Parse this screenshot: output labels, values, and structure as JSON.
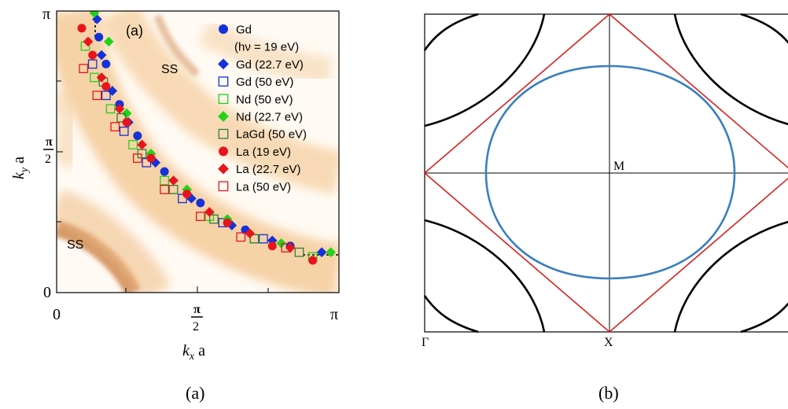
{
  "captions": {
    "left": "(a)",
    "right": "(b)"
  },
  "colors": {
    "gd": "#1531d8",
    "nd": "#22d21b",
    "la": "#e8141c",
    "lagd": "#2e7d3e",
    "fermi_blue": "#3a7fbe",
    "zone_red": "#d92020",
    "heat": "#f3c58e",
    "heat_dark": "#c96a2a"
  },
  "chart_data": [
    {
      "type": "scatter",
      "title": "",
      "panel_label": "(a)",
      "xlabel": "k_x a",
      "ylabel": "k_y a",
      "xlim": [
        0,
        3.1416
      ],
      "ylim": [
        0,
        3.1416
      ],
      "x_ticks": [
        {
          "v": 0,
          "label": "0"
        },
        {
          "v": 1.5708,
          "label": "π/2"
        },
        {
          "v": 3.1416,
          "label": "π"
        }
      ],
      "y_ticks": [
        {
          "v": 0,
          "label": "0"
        },
        {
          "v": 1.5708,
          "label": "π/2"
        },
        {
          "v": 3.1416,
          "label": "π"
        }
      ],
      "annotations": [
        "SS",
        "SS"
      ],
      "background": "ARPES intensity map",
      "legend_position": "top-right",
      "series": [
        {
          "name": "Gd",
          "subname": "(hν = 19 eV)",
          "marker": "circle-filled",
          "color_key": "gd",
          "x": [
            0.47,
            0.55,
            0.7,
            0.9,
            1.2,
            1.6,
            2.1,
            2.6
          ],
          "y": [
            2.85,
            2.55,
            2.1,
            1.75,
            1.35,
            1.0,
            0.7,
            0.52
          ]
        },
        {
          "name": "Gd (22.7 eV)",
          "marker": "diamond-filled",
          "color_key": "gd",
          "x": [
            0.45,
            0.5,
            0.62,
            0.8,
            1.1,
            1.5,
            1.95,
            2.4,
            2.95
          ],
          "y": [
            3.05,
            2.65,
            2.25,
            1.9,
            1.45,
            1.05,
            0.75,
            0.58,
            0.45
          ]
        },
        {
          "name": "Gd (50 eV)",
          "marker": "square-open",
          "color_key": "gd",
          "x": [
            0.4,
            0.55,
            0.75,
            1.0,
            1.4,
            1.85,
            2.3
          ],
          "y": [
            2.55,
            2.2,
            1.8,
            1.45,
            1.05,
            0.78,
            0.6
          ]
        },
        {
          "name": "Nd (50 eV)",
          "marker": "square-open",
          "color_key": "nd",
          "x": [
            0.32,
            0.42,
            0.6,
            0.85,
            1.2,
            1.7,
            2.2,
            2.85
          ],
          "y": [
            2.75,
            2.4,
            2.05,
            1.65,
            1.25,
            0.85,
            0.6,
            0.4
          ]
        },
        {
          "name": "Nd (22.7 eV)",
          "marker": "diamond-filled",
          "color_key": "nd",
          "x": [
            0.42,
            0.58,
            0.78,
            1.05,
            1.45,
            1.9,
            2.5,
            3.05
          ],
          "y": [
            3.12,
            2.8,
            2.0,
            1.55,
            1.15,
            0.82,
            0.55,
            0.45
          ]
        },
        {
          "name": "LaGd (50 eV)",
          "marker": "square-open",
          "color_key": "lagd",
          "x": [
            0.52,
            0.72,
            0.95,
            1.3,
            1.75,
            2.2,
            2.7
          ],
          "y": [
            2.35,
            1.95,
            1.55,
            1.15,
            0.82,
            0.6,
            0.45
          ]
        },
        {
          "name": "La (19 eV)",
          "marker": "circle-filled",
          "color_key": "la",
          "x": [
            0.28,
            0.4,
            0.55,
            0.78,
            1.05,
            1.45,
            1.9,
            2.4,
            2.85
          ],
          "y": [
            2.95,
            2.65,
            2.3,
            1.9,
            1.5,
            1.1,
            0.78,
            0.52,
            0.36
          ]
        },
        {
          "name": "La (22.7 eV)",
          "marker": "diamond-filled",
          "color_key": "la",
          "x": [
            0.35,
            0.5,
            0.7,
            0.95,
            1.3,
            1.7,
            2.15,
            2.6
          ],
          "y": [
            2.8,
            2.4,
            2.05,
            1.65,
            1.25,
            0.9,
            0.66,
            0.5
          ]
        },
        {
          "name": "La (50 eV)",
          "marker": "square-open",
          "color_key": "la",
          "x": [
            0.3,
            0.45,
            0.65,
            0.9,
            1.2,
            1.6,
            2.05,
            2.55
          ],
          "y": [
            2.5,
            2.2,
            1.85,
            1.5,
            1.15,
            0.85,
            0.62,
            0.5
          ]
        }
      ]
    },
    {
      "type": "line",
      "title": "",
      "panel_label": "(b)",
      "point_labels": [
        "M",
        "Γ",
        "X"
      ],
      "description_curves": [
        "blue Fermi surface around M",
        "red zone-boundary diamond",
        "black hyperbolic corner curves"
      ],
      "series": []
    }
  ]
}
